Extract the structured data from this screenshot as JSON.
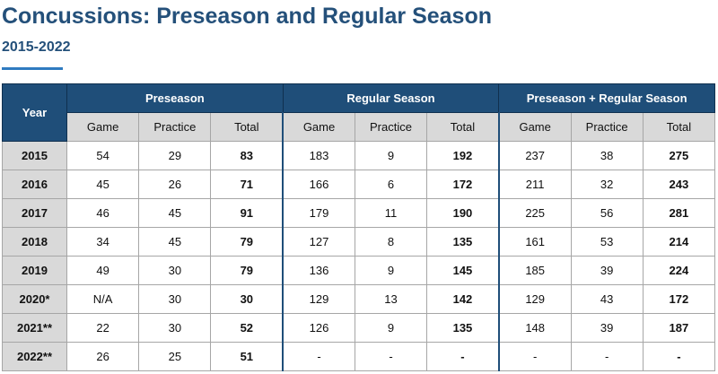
{
  "header": {
    "title": "Concussions: Preseason and Regular Season",
    "subtitle": "2015-2022"
  },
  "table": {
    "year_label": "Year",
    "groups": [
      "Preseason",
      "Regular Season",
      "Preseason + Regular Season"
    ],
    "subheaders": [
      "Game",
      "Practice",
      "Total",
      "Game",
      "Practice",
      "Total",
      "Game",
      "Practice",
      "Total"
    ],
    "rows": [
      [
        "2015",
        54,
        29,
        83,
        183,
        9,
        192,
        237,
        38,
        275
      ],
      [
        "2016",
        45,
        26,
        71,
        166,
        6,
        172,
        211,
        32,
        243
      ],
      [
        "2017",
        46,
        45,
        91,
        179,
        11,
        190,
        225,
        56,
        281
      ],
      [
        "2018",
        34,
        45,
        79,
        127,
        8,
        135,
        161,
        53,
        214
      ],
      [
        "2019",
        49,
        30,
        79,
        136,
        9,
        145,
        185,
        39,
        224
      ],
      [
        "2020*",
        "N/A",
        30,
        30,
        129,
        13,
        142,
        129,
        43,
        172
      ],
      [
        "2021**",
        22,
        30,
        52,
        126,
        9,
        135,
        148,
        39,
        187
      ],
      [
        "2022**",
        26,
        25,
        51,
        "-",
        "-",
        "-",
        "-",
        "-",
        "-"
      ]
    ]
  }
}
